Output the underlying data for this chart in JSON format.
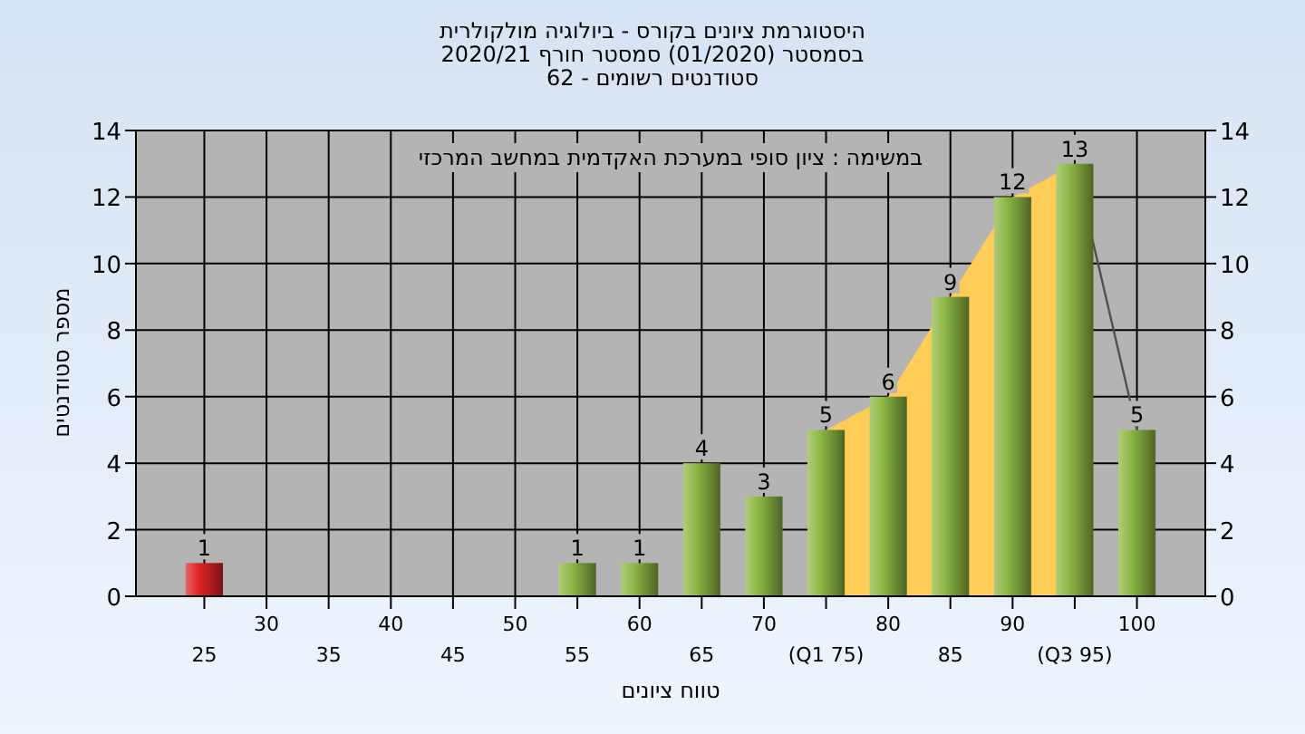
{
  "chart_data": {
    "type": "bar",
    "title": "היסטוגרמת ציונים בקורס - ביולוגיה מולקולרית",
    "subtitle": "בסמסטר  (01/2020)  סמסטר חורף  2020/21\nסטודנטים רשומים - 62",
    "xlabel": "טווח ציונים",
    "ylabel": "מספר סטודנטים",
    "annotations": [
      "במשימה : ציון סופי במערכת האקדמית במחשב המרכזי"
    ],
    "categories": [
      "25",
      "30",
      "35",
      "40",
      "45",
      "50",
      "55",
      "60",
      "65",
      "70",
      "(Q1 75)",
      "80",
      "85",
      "90",
      "(Q3 95)",
      "100"
    ],
    "series": [
      {
        "type": "area",
        "color": "#ffcc55",
        "values": [
          null,
          null,
          null,
          null,
          null,
          null,
          null,
          null,
          null,
          null,
          5,
          6,
          9,
          12,
          13,
          null
        ]
      },
      {
        "type": "line",
        "color": "#505050",
        "values": [
          null,
          null,
          null,
          null,
          null,
          null,
          null,
          null,
          null,
          null,
          null,
          null,
          null,
          null,
          13,
          5
        ]
      },
      {
        "colors": [
          "#e02424",
          "#8cb844",
          "#8cb844",
          "#8cb844",
          "#8cb844",
          "#8cb844",
          "#8cb844",
          "#8cb844",
          "#8cb844",
          "#8cb844",
          "#8cb844",
          "#8cb844",
          "#8cb844",
          "#8cb844",
          "#8cb844",
          "#8cb844"
        ],
        "values": [
          1,
          0,
          0,
          0,
          0,
          0,
          1,
          1,
          4,
          3,
          5,
          6,
          9,
          12,
          13,
          5
        ],
        "value_labels": [
          "1",
          null,
          null,
          null,
          null,
          null,
          "1",
          "1",
          "4",
          "3",
          "5",
          "6",
          "9",
          "12",
          "13",
          "5"
        ]
      }
    ],
    "ylim": [
      0,
      14
    ],
    "yticks": [
      0,
      2,
      4,
      6,
      8,
      10,
      12,
      14
    ],
    "y2lim": [
      0,
      14
    ],
    "y2ticks": [
      0,
      2,
      4,
      6,
      8,
      10,
      12,
      14
    ],
    "grid": true
  }
}
